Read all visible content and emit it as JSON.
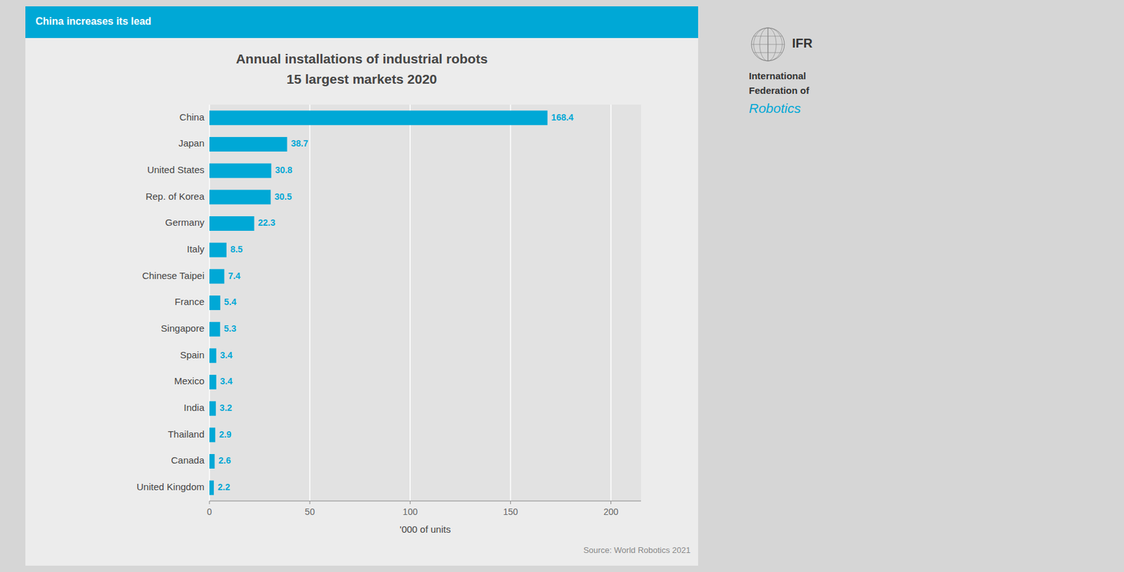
{
  "chart_data": {
    "type": "bar",
    "orientation": "horizontal",
    "title": "Annual installations of industrial robots",
    "subtitle": "15 largest markets 2020",
    "annotations": [
      "China increases its lead",
      "Source: World Robotics 2021",
      "IFR",
      "International",
      "Federation of",
      "Robotics"
    ],
    "categories": [
      "China",
      "Japan",
      "United States",
      "Rep. of Korea",
      "Germany",
      "Italy",
      "Chinese Taipei",
      "France",
      "Singapore",
      "Spain",
      "Mexico",
      "India",
      "Thailand",
      "Canada",
      "United Kingdom"
    ],
    "values": [
      168.4,
      38.7,
      30.8,
      30.5,
      22.3,
      8.5,
      7.4,
      5.4,
      5.3,
      3.4,
      3.4,
      3.2,
      2.9,
      2.6,
      2.2
    ],
    "color": "#00a8d6",
    "xlabel": "'000 of units",
    "xlim": [
      0,
      215
    ],
    "xticks": [
      0,
      50,
      100,
      150,
      200
    ],
    "grid": true,
    "data_labels": true
  }
}
